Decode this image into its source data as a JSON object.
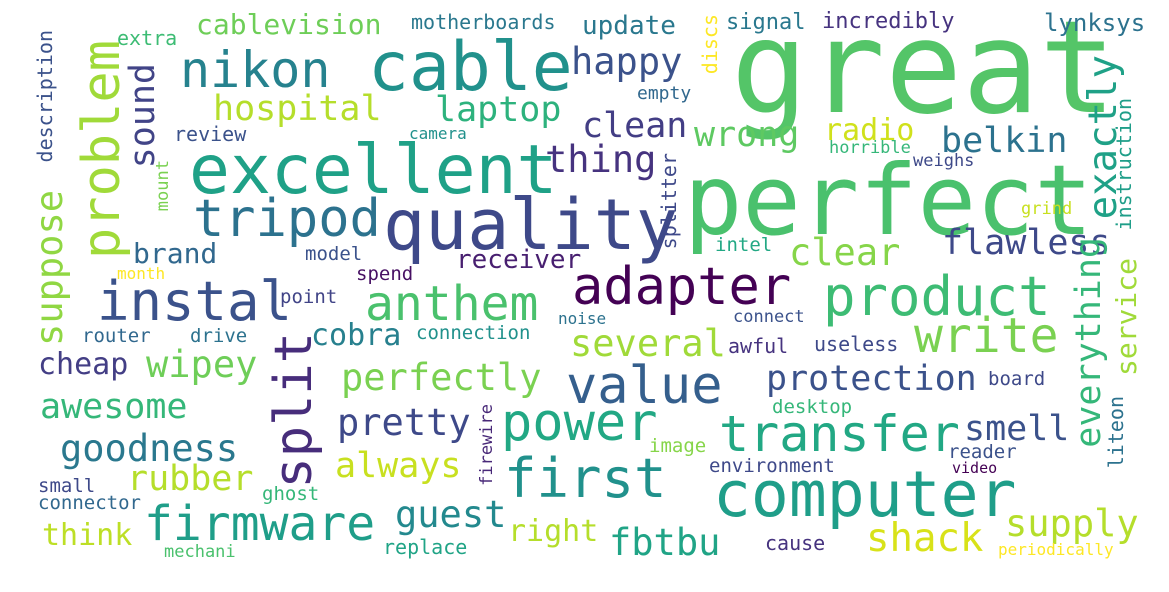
{
  "words": [
    {
      "text": "great",
      "color": "#54c568"
    },
    {
      "text": "perfect",
      "color": "#4ac16d"
    },
    {
      "text": "cable",
      "color": "#21918c"
    },
    {
      "text": "excellent",
      "color": "#1fa187"
    },
    {
      "text": "quality",
      "color": "#3e4989"
    },
    {
      "text": "tripod",
      "color": "#2c728e"
    },
    {
      "text": "nikon",
      "color": "#26828e"
    },
    {
      "text": "problem",
      "color": "#a0da39"
    },
    {
      "text": "computer",
      "color": "#1f9e89"
    },
    {
      "text": "product",
      "color": "#3dbc74"
    },
    {
      "text": "anthem",
      "color": "#4ac16d"
    },
    {
      "text": "adapter",
      "color": "#440154"
    },
    {
      "text": "instal",
      "color": "#3b528b"
    },
    {
      "text": "split",
      "color": "#472d7b"
    },
    {
      "text": "value",
      "color": "#355f8d"
    },
    {
      "text": "transfer",
      "color": "#22a884"
    },
    {
      "text": "power",
      "color": "#22a884"
    },
    {
      "text": "first",
      "color": "#21918c"
    },
    {
      "text": "write",
      "color": "#7ad151"
    },
    {
      "text": "firmware",
      "color": "#1f9e89"
    },
    {
      "text": "hospital",
      "color": "#b5de2b"
    },
    {
      "text": "laptop",
      "color": "#2db27d"
    },
    {
      "text": "happy",
      "color": "#3b528b"
    },
    {
      "text": "clean",
      "color": "#433e85"
    },
    {
      "text": "wrong",
      "color": "#5ec962"
    },
    {
      "text": "thing",
      "color": "#46337f"
    },
    {
      "text": "belkin",
      "color": "#2c728e"
    },
    {
      "text": "exactly",
      "color": "#1fa187"
    },
    {
      "text": "flawless",
      "color": "#3e4989"
    },
    {
      "text": "clear",
      "color": "#86d549"
    },
    {
      "text": "cablevision",
      "color": "#6ece58"
    },
    {
      "text": "update",
      "color": "#2a788e"
    },
    {
      "text": "sound",
      "color": "#414487"
    },
    {
      "text": "suppose",
      "color": "#90d743"
    },
    {
      "text": "brand",
      "color": "#31688e"
    },
    {
      "text": "everything",
      "color": "#35b779"
    },
    {
      "text": "service",
      "color": "#a0da39"
    },
    {
      "text": "protection",
      "color": "#3b528b"
    },
    {
      "text": "several",
      "color": "#a0da39"
    },
    {
      "text": "perfectly",
      "color": "#7ad151"
    },
    {
      "text": "pretty",
      "color": "#3e4989"
    },
    {
      "text": "always",
      "color": "#c8e020"
    },
    {
      "text": "smell",
      "color": "#3b528b"
    },
    {
      "text": "goodness",
      "color": "#2a788e"
    },
    {
      "text": "awesome",
      "color": "#35b779"
    },
    {
      "text": "wipey",
      "color": "#6ece58"
    },
    {
      "text": "rubber",
      "color": "#b5de2b"
    },
    {
      "text": "guest",
      "color": "#23898e"
    },
    {
      "text": "supply",
      "color": "#b5de2b"
    },
    {
      "text": "shack",
      "color": "#d8e219"
    },
    {
      "text": "fbtbu",
      "color": "#20a486"
    },
    {
      "text": "right",
      "color": "#b5de2b"
    },
    {
      "text": "think",
      "color": "#bddf26"
    },
    {
      "text": "cobra",
      "color": "#27808e"
    },
    {
      "text": "cheap",
      "color": "#433e85"
    },
    {
      "text": "receiver",
      "color": "#481f70"
    },
    {
      "text": "radio",
      "color": "#d0e11c"
    },
    {
      "text": "liteon",
      "color": "#2c728e"
    },
    {
      "text": "instruction",
      "color": "#1f9e89"
    },
    {
      "text": "description",
      "color": "#3b528b"
    },
    {
      "text": "mount",
      "color": "#7ad151"
    },
    {
      "text": "splitter",
      "color": "#3e4989"
    },
    {
      "text": "discs",
      "color": "#fde725"
    },
    {
      "text": "firewire",
      "color": "#482878"
    },
    {
      "text": "motherboards",
      "color": "#2a788e"
    },
    {
      "text": "signal",
      "color": "#2a788e"
    },
    {
      "text": "incredibly",
      "color": "#46337f"
    },
    {
      "text": "lynksys",
      "color": "#2c728e"
    },
    {
      "text": "extra",
      "color": "#3dbc74"
    },
    {
      "text": "review",
      "color": "#3b528b"
    },
    {
      "text": "camera",
      "color": "#21918c"
    },
    {
      "text": "empty",
      "color": "#31688e"
    },
    {
      "text": "horrible",
      "color": "#35b779"
    },
    {
      "text": "weighs",
      "color": "#3e4989"
    },
    {
      "text": "grind",
      "color": "#c8e020"
    },
    {
      "text": "intel",
      "color": "#22a884"
    },
    {
      "text": "model",
      "color": "#3b528b"
    },
    {
      "text": "month",
      "color": "#fde725"
    },
    {
      "text": "spend",
      "color": "#471063"
    },
    {
      "text": "point",
      "color": "#414487"
    },
    {
      "text": "router",
      "color": "#31688e"
    },
    {
      "text": "drive",
      "color": "#2c728e"
    },
    {
      "text": "noise",
      "color": "#2c728e"
    },
    {
      "text": "connection",
      "color": "#21918c"
    },
    {
      "text": "connect",
      "color": "#3b528b"
    },
    {
      "text": "awful",
      "color": "#46337f"
    },
    {
      "text": "useless",
      "color": "#3e4989"
    },
    {
      "text": "board",
      "color": "#3e4989"
    },
    {
      "text": "desktop",
      "color": "#35b779"
    },
    {
      "text": "image",
      "color": "#86d549"
    },
    {
      "text": "reader",
      "color": "#3b528b"
    },
    {
      "text": "environment",
      "color": "#3e4989"
    },
    {
      "text": "video",
      "color": "#440154"
    },
    {
      "text": "small",
      "color": "#3e4989"
    },
    {
      "text": "connector",
      "color": "#31688e"
    },
    {
      "text": "ghost",
      "color": "#35b779"
    },
    {
      "text": "mechani",
      "color": "#4ac16d"
    },
    {
      "text": "replace",
      "color": "#20a486"
    },
    {
      "text": "cause",
      "color": "#46337f"
    },
    {
      "text": "periodically",
      "color": "#fde725"
    }
  ]
}
